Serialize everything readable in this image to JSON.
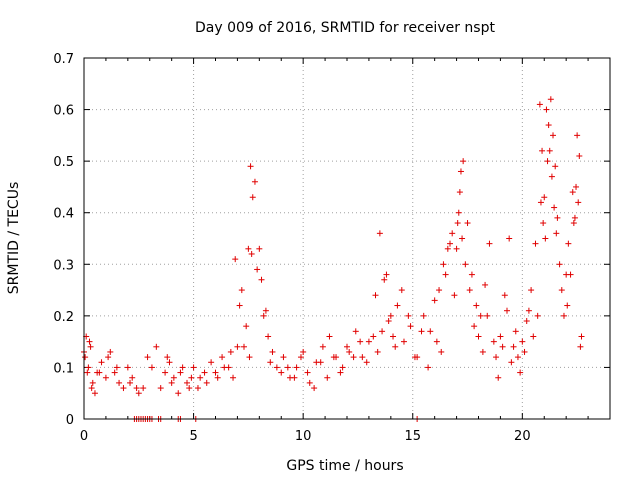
{
  "chart_data": {
    "type": "scatter",
    "title": "Day 009 of 2016, SRMTID for receiver nspt",
    "xlabel": "GPS time / hours",
    "ylabel": "SRMTID / TECUs",
    "xlim": [
      0,
      24
    ],
    "ylim": [
      0,
      0.7
    ],
    "xticks": [
      0,
      5,
      10,
      15,
      20
    ],
    "yticks": [
      0,
      0.1,
      0.2,
      0.3,
      0.4,
      0.5,
      0.6,
      0.7
    ],
    "xtick_labels": [
      "0",
      "5",
      "10",
      "15",
      "20"
    ],
    "ytick_labels": [
      "0",
      "0.1",
      "0.2",
      "0.3",
      "0.4",
      "0.5",
      "0.6",
      "0.7"
    ],
    "grid": true,
    "marker": "+",
    "series": [
      {
        "name": "SRMTID",
        "color": "#e00000",
        "x": [
          0.0,
          0.1,
          0.2,
          0.3,
          0.4,
          0.5,
          0.6,
          0.8,
          1.0,
          1.2,
          1.4,
          1.6,
          1.8,
          2.0,
          2.2,
          2.4,
          2.5,
          2.7,
          2.9,
          3.1,
          3.3,
          3.5,
          3.7,
          3.9,
          4.1,
          4.3,
          4.5,
          4.7,
          4.9,
          5.2,
          5.5,
          5.8,
          6.1,
          6.4,
          6.7,
          6.9,
          7.1,
          7.3,
          7.5,
          7.6,
          7.7,
          7.9,
          8.1,
          8.3,
          8.5,
          8.8,
          9.1,
          9.4,
          9.7,
          10.0,
          10.3,
          10.6,
          10.9,
          11.2,
          11.5,
          11.8,
          12.1,
          12.4,
          12.7,
          13.0,
          13.3,
          13.5,
          13.7,
          13.9,
          14.1,
          14.3,
          14.6,
          14.9,
          15.2,
          15.5,
          15.8,
          16.0,
          16.2,
          16.4,
          16.6,
          16.8,
          17.0,
          17.1,
          17.2,
          17.3,
          17.5,
          17.7,
          17.9,
          18.1,
          18.3,
          18.5,
          18.8,
          19.0,
          19.2,
          19.4,
          19.6,
          19.8,
          20.0,
          20.2,
          20.4,
          20.6,
          20.8,
          20.9,
          21.0,
          21.1,
          21.2,
          21.3,
          21.4,
          21.5,
          21.6,
          21.8,
          22.0,
          22.1,
          22.3,
          22.4,
          22.5,
          22.6,
          22.7,
          0.05,
          0.15,
          0.25,
          0.35,
          0.7,
          1.1,
          1.5,
          2.1,
          3.8,
          4.0,
          4.4,
          4.8,
          5.0,
          5.3,
          5.6,
          6.0,
          6.3,
          6.6,
          6.8,
          7.0,
          7.2,
          7.4,
          7.55,
          7.65,
          7.8,
          8.0,
          8.2,
          8.4,
          8.6,
          9.0,
          9.3,
          9.6,
          9.9,
          10.2,
          10.5,
          10.8,
          11.1,
          11.4,
          11.7,
          12.0,
          12.3,
          12.6,
          12.9,
          13.2,
          13.4,
          13.6,
          13.8,
          14.0,
          14.2,
          14.5,
          14.8,
          15.1,
          15.4,
          15.7,
          16.1,
          16.3,
          16.5,
          16.7,
          16.9,
          17.05,
          17.15,
          17.25,
          17.4,
          17.6,
          17.8,
          18.0,
          18.2,
          18.4,
          18.7,
          18.9,
          19.1,
          19.3,
          19.5,
          19.7,
          19.9,
          20.1,
          20.3,
          20.5,
          20.7,
          20.85,
          20.95,
          21.05,
          21.15,
          21.25,
          21.35,
          21.45,
          21.55,
          21.7,
          21.9,
          22.05,
          22.2,
          22.35,
          22.45,
          22.55,
          22.65,
          2.3,
          2.4,
          2.5,
          2.6,
          2.7,
          2.8,
          2.9,
          3.0,
          3.1,
          3.4,
          3.5,
          4.3,
          4.4,
          5.1,
          15.2
        ],
        "y": [
          0.13,
          0.16,
          0.1,
          0.14,
          0.07,
          0.05,
          0.09,
          0.11,
          0.08,
          0.13,
          0.09,
          0.07,
          0.06,
          0.1,
          0.08,
          0.06,
          0.05,
          0.06,
          0.12,
          0.1,
          0.14,
          0.06,
          0.09,
          0.11,
          0.08,
          0.05,
          0.1,
          0.07,
          0.08,
          0.06,
          0.09,
          0.11,
          0.08,
          0.1,
          0.13,
          0.31,
          0.22,
          0.14,
          0.33,
          0.49,
          0.43,
          0.29,
          0.27,
          0.21,
          0.11,
          0.1,
          0.12,
          0.08,
          0.1,
          0.13,
          0.07,
          0.11,
          0.14,
          0.16,
          0.12,
          0.1,
          0.13,
          0.17,
          0.12,
          0.15,
          0.24,
          0.36,
          0.27,
          0.19,
          0.16,
          0.22,
          0.15,
          0.18,
          0.12,
          0.2,
          0.17,
          0.23,
          0.25,
          0.3,
          0.33,
          0.36,
          0.33,
          0.4,
          0.48,
          0.5,
          0.38,
          0.28,
          0.22,
          0.2,
          0.26,
          0.34,
          0.12,
          0.16,
          0.24,
          0.35,
          0.14,
          0.12,
          0.15,
          0.19,
          0.25,
          0.34,
          0.61,
          0.52,
          0.43,
          0.6,
          0.57,
          0.62,
          0.55,
          0.49,
          0.39,
          0.25,
          0.28,
          0.34,
          0.44,
          0.39,
          0.55,
          0.51,
          0.16,
          0.12,
          0.09,
          0.15,
          0.06,
          0.09,
          0.12,
          0.1,
          0.07,
          0.12,
          0.07,
          0.09,
          0.06,
          0.1,
          0.08,
          0.07,
          0.09,
          0.12,
          0.1,
          0.08,
          0.14,
          0.25,
          0.18,
          0.12,
          0.32,
          0.46,
          0.33,
          0.2,
          0.16,
          0.13,
          0.09,
          0.1,
          0.08,
          0.12,
          0.09,
          0.06,
          0.11,
          0.08,
          0.12,
          0.09,
          0.14,
          0.12,
          0.15,
          0.11,
          0.16,
          0.13,
          0.17,
          0.28,
          0.2,
          0.14,
          0.25,
          0.2,
          0.12,
          0.17,
          0.1,
          0.15,
          0.13,
          0.28,
          0.34,
          0.24,
          0.38,
          0.44,
          0.35,
          0.3,
          0.25,
          0.18,
          0.16,
          0.13,
          0.2,
          0.15,
          0.08,
          0.14,
          0.21,
          0.11,
          0.17,
          0.09,
          0.13,
          0.21,
          0.16,
          0.2,
          0.42,
          0.38,
          0.35,
          0.5,
          0.52,
          0.47,
          0.41,
          0.36,
          0.3,
          0.2,
          0.22,
          0.28,
          0.38,
          0.45,
          0.42,
          0.14,
          0.0,
          0.0,
          0.0,
          0.0,
          0.0,
          0.0,
          0.0,
          0.0,
          0.0,
          0.0,
          0.0,
          0.0,
          0.0,
          0.0,
          0.0
        ]
      }
    ]
  }
}
